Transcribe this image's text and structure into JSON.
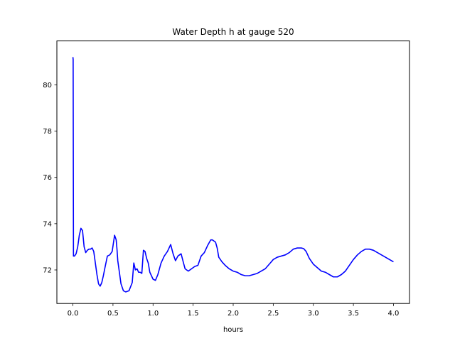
{
  "chart_data": {
    "type": "line",
    "title": "Water Depth h at gauge 520",
    "xlabel": "hours",
    "ylabel": "",
    "xlim": [
      -0.2,
      4.2
    ],
    "ylim": [
      70.55,
      81.9
    ],
    "grid": false,
    "legend": "none",
    "x_ticks": [
      0.0,
      0.5,
      1.0,
      1.5,
      2.0,
      2.5,
      3.0,
      3.5,
      4.0
    ],
    "x_tick_labels": [
      "0.0",
      "0.5",
      "1.0",
      "1.5",
      "2.0",
      "2.5",
      "3.0",
      "3.5",
      "4.0"
    ],
    "y_ticks": [
      72,
      74,
      76,
      78,
      80
    ],
    "y_tick_labels": [
      "72",
      "74",
      "76",
      "78",
      "80"
    ],
    "series": [
      {
        "color": "#0000ff",
        "x": [
          0.0,
          0.003,
          0.007,
          0.01,
          0.02,
          0.04,
          0.06,
          0.08,
          0.1,
          0.12,
          0.14,
          0.16,
          0.18,
          0.2,
          0.22,
          0.24,
          0.26,
          0.28,
          0.3,
          0.32,
          0.34,
          0.36,
          0.38,
          0.4,
          0.43,
          0.46,
          0.49,
          0.52,
          0.54,
          0.55,
          0.56,
          0.58,
          0.6,
          0.63,
          0.66,
          0.7,
          0.74,
          0.76,
          0.78,
          0.8,
          0.82,
          0.84,
          0.86,
          0.88,
          0.9,
          0.92,
          0.94,
          0.96,
          1.0,
          1.03,
          1.06,
          1.1,
          1.14,
          1.18,
          1.22,
          1.25,
          1.28,
          1.31,
          1.35,
          1.38,
          1.4,
          1.44,
          1.48,
          1.52,
          1.56,
          1.6,
          1.64,
          1.68,
          1.72,
          1.74,
          1.76,
          1.78,
          1.8,
          1.82,
          1.86,
          1.9,
          1.95,
          2.0,
          2.05,
          2.1,
          2.15,
          2.2,
          2.25,
          2.3,
          2.35,
          2.4,
          2.45,
          2.5,
          2.55,
          2.6,
          2.65,
          2.7,
          2.75,
          2.8,
          2.85,
          2.88,
          2.91,
          2.95,
          3.0,
          3.05,
          3.1,
          3.15,
          3.2,
          3.25,
          3.3,
          3.35,
          3.4,
          3.45,
          3.5,
          3.55,
          3.6,
          3.65,
          3.7,
          3.75,
          3.8,
          3.85,
          3.9,
          3.95,
          4.0
        ],
        "y": [
          81.2,
          81.1,
          72.6,
          72.6,
          72.6,
          72.7,
          73.0,
          73.5,
          73.8,
          73.7,
          73.0,
          72.75,
          72.85,
          72.9,
          72.9,
          72.95,
          72.8,
          72.3,
          71.8,
          71.4,
          71.3,
          71.45,
          71.75,
          72.1,
          72.6,
          72.65,
          72.8,
          73.5,
          73.3,
          72.9,
          72.4,
          71.9,
          71.4,
          71.1,
          71.05,
          71.1,
          71.45,
          72.3,
          72.0,
          72.05,
          71.9,
          71.9,
          71.85,
          72.85,
          72.8,
          72.5,
          72.3,
          71.9,
          71.6,
          71.55,
          71.8,
          72.3,
          72.6,
          72.8,
          73.1,
          72.7,
          72.4,
          72.6,
          72.7,
          72.3,
          72.05,
          71.95,
          72.05,
          72.15,
          72.2,
          72.6,
          72.75,
          73.05,
          73.3,
          73.3,
          73.25,
          73.2,
          72.95,
          72.55,
          72.35,
          72.2,
          72.05,
          71.95,
          71.9,
          71.8,
          71.75,
          71.75,
          71.8,
          71.85,
          71.95,
          72.05,
          72.25,
          72.45,
          72.55,
          72.6,
          72.65,
          72.75,
          72.9,
          72.95,
          72.95,
          72.92,
          72.8,
          72.5,
          72.25,
          72.1,
          71.95,
          71.9,
          71.8,
          71.7,
          71.7,
          71.8,
          71.95,
          72.2,
          72.45,
          72.65,
          72.8,
          72.9,
          72.9,
          72.85,
          72.75,
          72.65,
          72.55,
          72.45,
          72.35
        ]
      }
    ]
  }
}
